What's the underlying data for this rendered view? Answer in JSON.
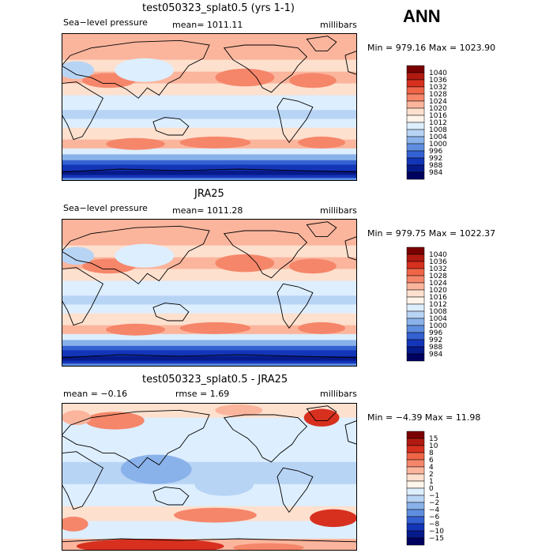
{
  "season_label": "ANN",
  "panels": [
    {
      "title": "test050323_splat0.5 (yrs 1-1)",
      "left_label": "Sea−level pressure",
      "mid_label": "mean= 1011.11",
      "right_label": "millibars",
      "minmax": "Min = 979.16 Max = 1023.90",
      "colorbar_levels": [
        "1040",
        "1036",
        "1032",
        "1028",
        "1024",
        "1020",
        "1016",
        "1012",
        "1008",
        "1004",
        "1000",
        "996",
        "992",
        "988",
        "984"
      ],
      "colorbar_colors": [
        "#7a0000",
        "#b01a10",
        "#d7301f",
        "#ef6548",
        "#f5866a",
        "#fbb59d",
        "#fde0ce",
        "#fff4ea",
        "#ddeeff",
        "#b8d4f5",
        "#8ab2ea",
        "#5f8ee0",
        "#3461d1",
        "#1335b8",
        "#061a8a",
        "#000060"
      ]
    },
    {
      "title": "JRA25",
      "left_label": "Sea−level pressure",
      "mid_label": "mean= 1011.28",
      "right_label": "millibars",
      "minmax": "Min = 979.75 Max = 1022.37",
      "colorbar_levels": [
        "1040",
        "1036",
        "1032",
        "1028",
        "1024",
        "1020",
        "1016",
        "1012",
        "1008",
        "1004",
        "1000",
        "996",
        "992",
        "988",
        "984"
      ],
      "colorbar_colors": [
        "#7a0000",
        "#b01a10",
        "#d7301f",
        "#ef6548",
        "#f5866a",
        "#fbb59d",
        "#fde0ce",
        "#fff4ea",
        "#ddeeff",
        "#b8d4f5",
        "#8ab2ea",
        "#5f8ee0",
        "#3461d1",
        "#1335b8",
        "#061a8a",
        "#000060"
      ]
    },
    {
      "title": "test050323_splat0.5 - JRA25",
      "left_label": "mean =  −0.16",
      "mid_label": "rmse =   1.69",
      "right_label": "millibars",
      "minmax": "Min =  −4.39 Max =  11.98",
      "colorbar_levels": [
        "15",
        "10",
        "8",
        "6",
        "4",
        "2",
        "1",
        "0",
        "−1",
        "−2",
        "−4",
        "−6",
        "−8",
        "−10",
        "−15"
      ],
      "colorbar_colors": [
        "#7a0000",
        "#b01a10",
        "#d7301f",
        "#ef6548",
        "#f5866a",
        "#fbb59d",
        "#fde0ce",
        "#fff4ea",
        "#ddeeff",
        "#b8d4f5",
        "#8ab2ea",
        "#5f8ee0",
        "#3461d1",
        "#1335b8",
        "#061a8a",
        "#000060"
      ]
    }
  ],
  "chart_data": [
    {
      "type": "heatmap",
      "title": "test050323_splat0.5 (yrs 1-1)",
      "variable": "Sea−level pressure",
      "units": "millibars",
      "mean": 1011.11,
      "min": 979.16,
      "max": 1023.9,
      "contour_levels": [
        984,
        988,
        992,
        996,
        1000,
        1004,
        1008,
        1012,
        1016,
        1020,
        1024,
        1028,
        1032,
        1036,
        1040
      ]
    },
    {
      "type": "heatmap",
      "title": "JRA25",
      "variable": "Sea−level pressure",
      "units": "millibars",
      "mean": 1011.28,
      "min": 979.75,
      "max": 1022.37,
      "contour_levels": [
        984,
        988,
        992,
        996,
        1000,
        1004,
        1008,
        1012,
        1016,
        1020,
        1024,
        1028,
        1032,
        1036,
        1040
      ]
    },
    {
      "type": "heatmap",
      "title": "test050323_splat0.5 - JRA25",
      "units": "millibars",
      "mean": -0.16,
      "rmse": 1.69,
      "min": -4.39,
      "max": 11.98,
      "contour_levels": [
        -15,
        -10,
        -8,
        -6,
        -4,
        -2,
        -1,
        0,
        1,
        2,
        4,
        6,
        8,
        10,
        15
      ]
    }
  ]
}
